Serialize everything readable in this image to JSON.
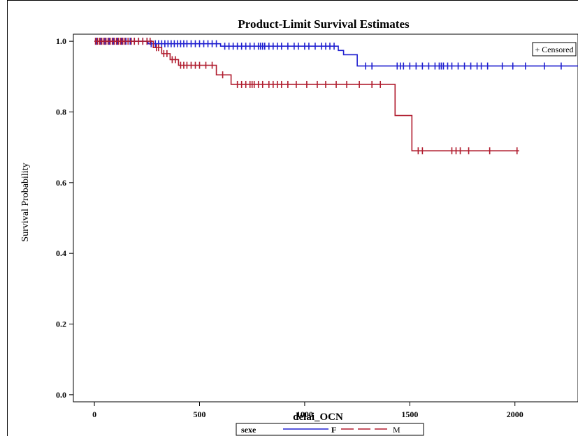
{
  "chart_data": {
    "type": "line",
    "title": "Product-Limit Survival Estimates",
    "xlabel": "delai_OCN",
    "ylabel": "Survival Probability",
    "xlim": [
      -100,
      2300
    ],
    "ylim": [
      -0.02,
      1.02
    ],
    "xticks": [
      0,
      500,
      1000,
      1500,
      2000
    ],
    "xtick_labels": [
      "0",
      "500",
      "1000",
      "1500",
      "2000"
    ],
    "yticks": [
      0.0,
      0.2,
      0.4,
      0.6,
      0.8,
      1.0
    ],
    "ytick_labels": [
      "0.0",
      "0.2",
      "0.4",
      "0.6",
      "0.8",
      "1.0"
    ],
    "grid": false,
    "legend": {
      "title": "sexe",
      "placement": "bottom-center"
    },
    "censor_legend": {
      "label": "+ Censored",
      "placement": "top-right"
    },
    "series": [
      {
        "name": "F",
        "color": "#2020d0",
        "steps": [
          [
            0,
            1.0
          ],
          [
            255,
            0.993
          ],
          [
            600,
            0.986
          ],
          [
            1160,
            0.974
          ],
          [
            1185,
            0.962
          ],
          [
            1250,
            0.93
          ],
          [
            2300,
            0.93
          ]
        ],
        "censored": [
          [
            10,
            1.0
          ],
          [
            30,
            1.0
          ],
          [
            50,
            1.0
          ],
          [
            70,
            1.0
          ],
          [
            90,
            1.0
          ],
          [
            110,
            1.0
          ],
          [
            130,
            1.0
          ],
          [
            150,
            1.0
          ],
          [
            170,
            1.0
          ],
          [
            190,
            1.0
          ],
          [
            210,
            1.0
          ],
          [
            230,
            1.0
          ],
          [
            250,
            1.0
          ],
          [
            270,
            0.993
          ],
          [
            290,
            0.993
          ],
          [
            305,
            0.993
          ],
          [
            320,
            0.993
          ],
          [
            335,
            0.993
          ],
          [
            350,
            0.993
          ],
          [
            365,
            0.993
          ],
          [
            380,
            0.993
          ],
          [
            395,
            0.993
          ],
          [
            410,
            0.993
          ],
          [
            425,
            0.993
          ],
          [
            440,
            0.993
          ],
          [
            460,
            0.993
          ],
          [
            480,
            0.993
          ],
          [
            500,
            0.993
          ],
          [
            520,
            0.993
          ],
          [
            540,
            0.993
          ],
          [
            560,
            0.993
          ],
          [
            580,
            0.993
          ],
          [
            620,
            0.986
          ],
          [
            640,
            0.986
          ],
          [
            660,
            0.986
          ],
          [
            680,
            0.986
          ],
          [
            700,
            0.986
          ],
          [
            720,
            0.986
          ],
          [
            740,
            0.986
          ],
          [
            760,
            0.986
          ],
          [
            780,
            0.986
          ],
          [
            790,
            0.986
          ],
          [
            800,
            0.986
          ],
          [
            810,
            0.986
          ],
          [
            830,
            0.986
          ],
          [
            850,
            0.986
          ],
          [
            870,
            0.986
          ],
          [
            890,
            0.986
          ],
          [
            920,
            0.986
          ],
          [
            950,
            0.986
          ],
          [
            970,
            0.986
          ],
          [
            1000,
            0.986
          ],
          [
            1020,
            0.986
          ],
          [
            1050,
            0.986
          ],
          [
            1080,
            0.986
          ],
          [
            1100,
            0.986
          ],
          [
            1120,
            0.986
          ],
          [
            1140,
            0.986
          ],
          [
            1290,
            0.93
          ],
          [
            1320,
            0.93
          ],
          [
            1440,
            0.93
          ],
          [
            1455,
            0.93
          ],
          [
            1470,
            0.93
          ],
          [
            1500,
            0.93
          ],
          [
            1530,
            0.93
          ],
          [
            1560,
            0.93
          ],
          [
            1590,
            0.93
          ],
          [
            1620,
            0.93
          ],
          [
            1640,
            0.93
          ],
          [
            1650,
            0.93
          ],
          [
            1660,
            0.93
          ],
          [
            1680,
            0.93
          ],
          [
            1700,
            0.93
          ],
          [
            1730,
            0.93
          ],
          [
            1760,
            0.93
          ],
          [
            1790,
            0.93
          ],
          [
            1820,
            0.93
          ],
          [
            1840,
            0.93
          ],
          [
            1870,
            0.93
          ],
          [
            1940,
            0.93
          ],
          [
            1990,
            0.93
          ],
          [
            2050,
            0.93
          ],
          [
            2140,
            0.93
          ],
          [
            2220,
            0.93
          ]
        ]
      },
      {
        "name": "M",
        "color": "#b01c2e",
        "steps": [
          [
            0,
            1.0
          ],
          [
            280,
            0.982
          ],
          [
            320,
            0.965
          ],
          [
            360,
            0.948
          ],
          [
            400,
            0.932
          ],
          [
            580,
            0.905
          ],
          [
            650,
            0.878
          ],
          [
            1430,
            0.79
          ],
          [
            1510,
            0.69
          ],
          [
            2020,
            0.69
          ]
        ],
        "censored": [
          [
            5,
            1.0
          ],
          [
            15,
            1.0
          ],
          [
            25,
            1.0
          ],
          [
            35,
            1.0
          ],
          [
            45,
            1.0
          ],
          [
            55,
            1.0
          ],
          [
            65,
            1.0
          ],
          [
            75,
            1.0
          ],
          [
            85,
            1.0
          ],
          [
            95,
            1.0
          ],
          [
            105,
            1.0
          ],
          [
            115,
            1.0
          ],
          [
            125,
            1.0
          ],
          [
            135,
            1.0
          ],
          [
            145,
            1.0
          ],
          [
            160,
            1.0
          ],
          [
            175,
            1.0
          ],
          [
            190,
            1.0
          ],
          [
            210,
            1.0
          ],
          [
            230,
            1.0
          ],
          [
            250,
            1.0
          ],
          [
            265,
            1.0
          ],
          [
            295,
            0.982
          ],
          [
            305,
            0.982
          ],
          [
            330,
            0.965
          ],
          [
            345,
            0.965
          ],
          [
            370,
            0.948
          ],
          [
            385,
            0.948
          ],
          [
            410,
            0.932
          ],
          [
            425,
            0.932
          ],
          [
            440,
            0.932
          ],
          [
            460,
            0.932
          ],
          [
            480,
            0.932
          ],
          [
            500,
            0.932
          ],
          [
            530,
            0.932
          ],
          [
            560,
            0.932
          ],
          [
            610,
            0.905
          ],
          [
            680,
            0.878
          ],
          [
            700,
            0.878
          ],
          [
            720,
            0.878
          ],
          [
            740,
            0.878
          ],
          [
            750,
            0.878
          ],
          [
            760,
            0.878
          ],
          [
            780,
            0.878
          ],
          [
            800,
            0.878
          ],
          [
            830,
            0.878
          ],
          [
            850,
            0.878
          ],
          [
            870,
            0.878
          ],
          [
            890,
            0.878
          ],
          [
            920,
            0.878
          ],
          [
            960,
            0.878
          ],
          [
            1010,
            0.878
          ],
          [
            1060,
            0.878
          ],
          [
            1100,
            0.878
          ],
          [
            1150,
            0.878
          ],
          [
            1200,
            0.878
          ],
          [
            1260,
            0.878
          ],
          [
            1320,
            0.878
          ],
          [
            1360,
            0.878
          ],
          [
            1540,
            0.69
          ],
          [
            1560,
            0.69
          ],
          [
            1700,
            0.69
          ],
          [
            1720,
            0.69
          ],
          [
            1740,
            0.69
          ],
          [
            1780,
            0.69
          ],
          [
            1880,
            0.69
          ],
          [
            2010,
            0.69
          ]
        ]
      }
    ]
  }
}
